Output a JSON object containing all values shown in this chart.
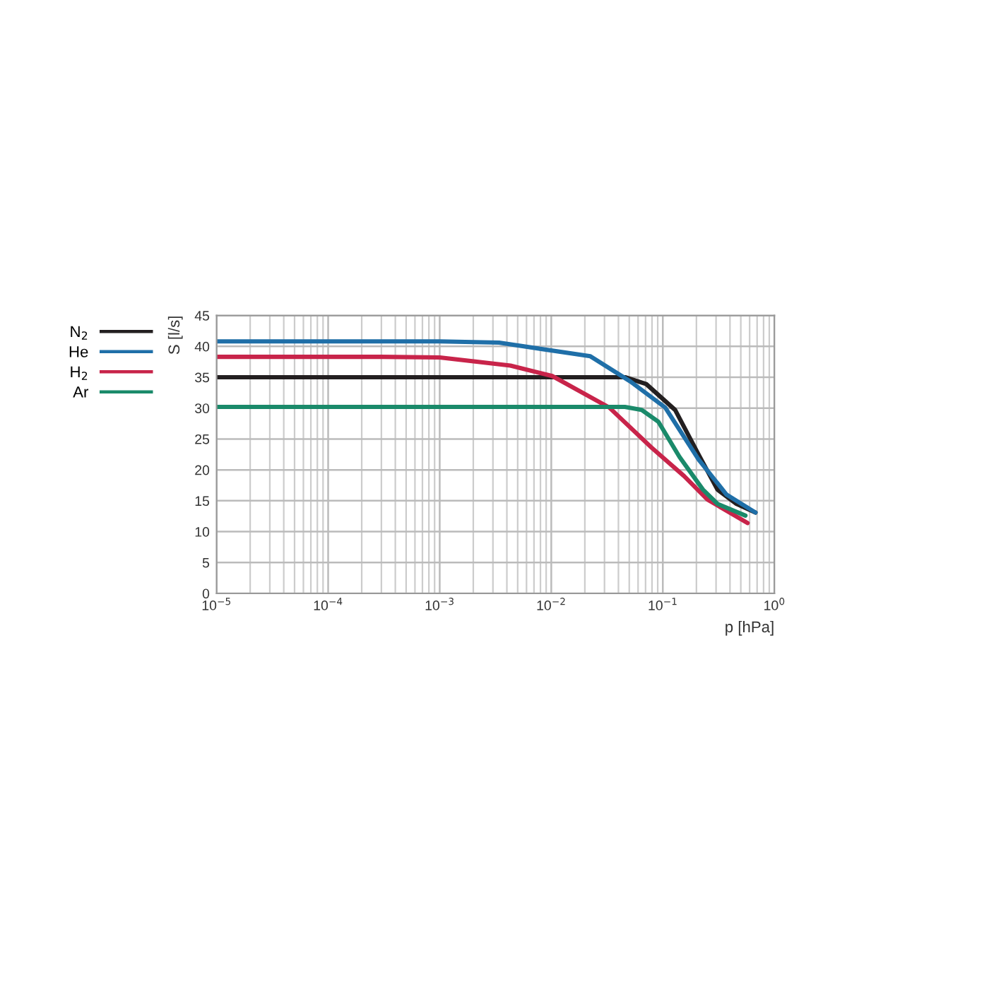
{
  "chart_data": {
    "type": "line",
    "xlabel": "p [hPa]",
    "ylabel": "S [l/s]",
    "log": "x",
    "xlim": [
      1e-05,
      1
    ],
    "ylim": [
      0,
      45
    ],
    "xticks": [
      {
        "value": 1e-05,
        "label": "10$^{−5}$"
      },
      {
        "value": 0.0001,
        "label": "10$^{−4}$"
      },
      {
        "value": 0.001,
        "label": "10$^{−3}$"
      },
      {
        "value": 0.01,
        "label": "10$^{−2}$"
      },
      {
        "value": 0.1,
        "label": "10$^{−1}$"
      },
      {
        "value": 1,
        "label": "10$^{0}$"
      }
    ],
    "yticks": [
      0,
      5,
      10,
      15,
      20,
      25,
      30,
      35,
      40,
      45
    ],
    "grid": true,
    "legend": "top left",
    "marker": "none",
    "line_style": "solid",
    "series": [
      {
        "name": "N$_{2}$",
        "color": "#231f20",
        "x": [
          1e-05,
          0.001,
          0.02,
          0.046,
          0.071,
          0.129,
          0.209,
          0.309,
          0.457,
          0.676
        ],
        "values": [
          35,
          35,
          35,
          35,
          33.9,
          29.7,
          22.5,
          16.8,
          14.5,
          13.1
        ]
      },
      {
        "name": "He",
        "color": "#1f6fa8",
        "x": [
          1e-05,
          0.001,
          0.0034,
          0.0224,
          0.0513,
          0.105,
          0.209,
          0.372,
          0.676
        ],
        "values": [
          40.8,
          40.8,
          40.6,
          38.4,
          34.3,
          30.1,
          21.7,
          16.0,
          13.1
        ]
      },
      {
        "name": "H$_{2}$",
        "color": "#c8244a",
        "x": [
          1e-05,
          0.0003,
          0.001,
          0.0043,
          0.0102,
          0.0331,
          0.0794,
          0.155,
          0.251,
          0.575
        ],
        "values": [
          38.3,
          38.3,
          38.2,
          36.9,
          35.2,
          30.1,
          23.6,
          19.0,
          15.2,
          11.4
        ]
      },
      {
        "name": "Ar",
        "color": "#1a8a6a",
        "x": [
          1e-05,
          0.01,
          0.0457,
          0.0646,
          0.0912,
          0.141,
          0.229,
          0.309,
          0.55
        ],
        "values": [
          30.2,
          30.2,
          30.2,
          29.7,
          27.8,
          22.1,
          16.8,
          14.5,
          12.6
        ]
      }
    ]
  }
}
